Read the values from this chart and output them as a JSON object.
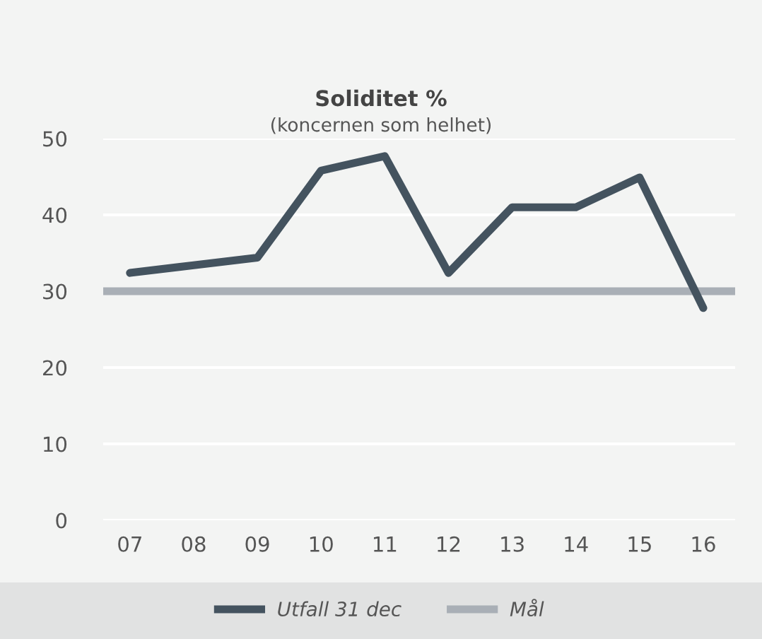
{
  "chart_data": {
    "type": "line",
    "title": "Soliditet %",
    "subtitle": "(koncernen som helhet)",
    "categories": [
      "07",
      "08",
      "09",
      "10",
      "11",
      "12",
      "13",
      "14",
      "15",
      "16"
    ],
    "series": [
      {
        "name": "Utfall 31 dec",
        "color": "#44535f",
        "values": [
          32.4,
          33.4,
          34.4,
          45.8,
          47.7,
          32.4,
          41.0,
          41.0,
          44.9,
          27.8
        ]
      }
    ],
    "ref_lines": [
      {
        "axis": "y",
        "value": 30,
        "label": "Mål",
        "color": "#a9afb6"
      }
    ],
    "ylim": [
      0,
      50
    ],
    "yticks": [
      0,
      10,
      20,
      30,
      40,
      50
    ],
    "grid": "y",
    "legend": "bottom",
    "marker": "none",
    "line_style": "solid"
  }
}
